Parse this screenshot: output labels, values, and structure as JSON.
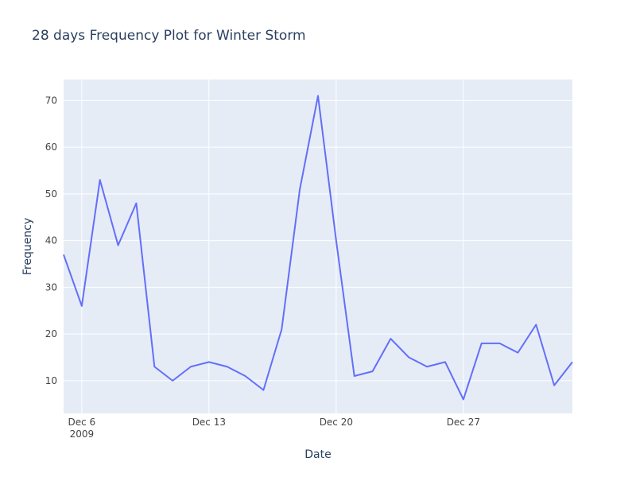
{
  "chart_data": {
    "type": "line",
    "title": "28 days Frequency Plot for Winter Storm",
    "xlabel": "Date",
    "ylabel": "Frequency",
    "x_tick_labels": [
      {
        "date": "2009-12-06",
        "label": "Dec 6",
        "sublabel": "2009"
      },
      {
        "date": "2009-12-13",
        "label": "Dec 13"
      },
      {
        "date": "2009-12-20",
        "label": "Dec 20"
      },
      {
        "date": "2009-12-27",
        "label": "Dec 27"
      }
    ],
    "y_ticks": [
      10,
      20,
      30,
      40,
      50,
      60,
      70
    ],
    "xlim": [
      "2009-12-05",
      "2010-01-02"
    ],
    "ylim": [
      3,
      74.5
    ],
    "grid": true,
    "legend": "none",
    "colors": {
      "line": "#636efa",
      "plot_bg": "#e5ecf6",
      "grid": "#ffffff",
      "text": "#2a3f5f",
      "tick_text": "#444444"
    },
    "series": [
      {
        "x": [
          "2009-12-05",
          "2009-12-06",
          "2009-12-07",
          "2009-12-08",
          "2009-12-09",
          "2009-12-10",
          "2009-12-11",
          "2009-12-12",
          "2009-12-13",
          "2009-12-14",
          "2009-12-15",
          "2009-12-16",
          "2009-12-17",
          "2009-12-18",
          "2009-12-19",
          "2009-12-20",
          "2009-12-21",
          "2009-12-22",
          "2009-12-23",
          "2009-12-24",
          "2009-12-25",
          "2009-12-26",
          "2009-12-27",
          "2009-12-28",
          "2009-12-29",
          "2009-12-30",
          "2009-12-31",
          "2010-01-01",
          "2010-01-02"
        ],
        "values": [
          37,
          26,
          53,
          39,
          48,
          13,
          10,
          13,
          14,
          13,
          11,
          8,
          21,
          51,
          71,
          40,
          11,
          12,
          19,
          15,
          13,
          14,
          6,
          18,
          18,
          16,
          22,
          9,
          14
        ]
      }
    ]
  }
}
